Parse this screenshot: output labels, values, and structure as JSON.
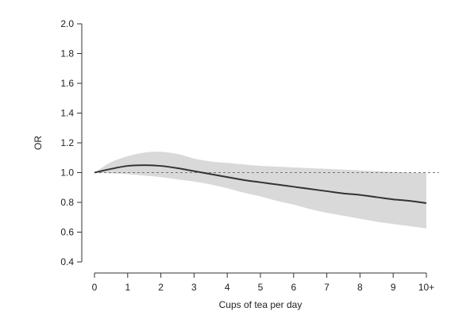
{
  "chart_data": {
    "type": "line",
    "xlabel": "Cups of tea per day",
    "ylabel": "OR",
    "x_ticks": [
      0,
      1,
      2,
      3,
      4,
      5,
      6,
      7,
      8,
      9,
      10
    ],
    "x_tick_labels": [
      "0",
      "1",
      "2",
      "3",
      "4",
      "5",
      "6",
      "7",
      "8",
      "9",
      "10+"
    ],
    "y_ticks": [
      0.4,
      0.6,
      0.8,
      1.0,
      1.2,
      1.4,
      1.6,
      1.8,
      2.0
    ],
    "y_tick_labels": [
      "0.4",
      "0.6",
      "0.8",
      "1.0",
      "1.2",
      "1.4",
      "1.6",
      "1.8",
      "2.0"
    ],
    "xlim": [
      0,
      10
    ],
    "ylim": [
      0.4,
      2.0
    ],
    "grid": false,
    "reference_line": {
      "y": 1.0,
      "style": "dashed"
    },
    "colors": {
      "line": "#333333",
      "band": "#d9d9d9",
      "reference": "#777777",
      "axis": "#333333"
    },
    "series": [
      {
        "x": [
          0,
          0.5,
          1,
          1.5,
          2,
          2.5,
          3,
          3.5,
          4,
          4.5,
          5,
          5.5,
          6,
          6.5,
          7,
          7.5,
          8,
          8.5,
          9,
          9.5,
          10
        ],
        "y": [
          1.0,
          1.025,
          1.045,
          1.05,
          1.045,
          1.03,
          1.01,
          0.99,
          0.97,
          0.95,
          0.935,
          0.92,
          0.905,
          0.89,
          0.875,
          0.86,
          0.85,
          0.835,
          0.82,
          0.81,
          0.795
        ],
        "lower": [
          1.0,
          0.995,
          0.99,
          0.98,
          0.97,
          0.955,
          0.94,
          0.92,
          0.895,
          0.865,
          0.84,
          0.81,
          0.785,
          0.755,
          0.73,
          0.71,
          0.69,
          0.67,
          0.655,
          0.64,
          0.625
        ],
        "upper": [
          1.0,
          1.07,
          1.11,
          1.135,
          1.14,
          1.125,
          1.095,
          1.075,
          1.065,
          1.055,
          1.045,
          1.04,
          1.035,
          1.03,
          1.025,
          1.02,
          1.015,
          1.01,
          1.005,
          1.0,
          1.0
        ]
      }
    ]
  }
}
